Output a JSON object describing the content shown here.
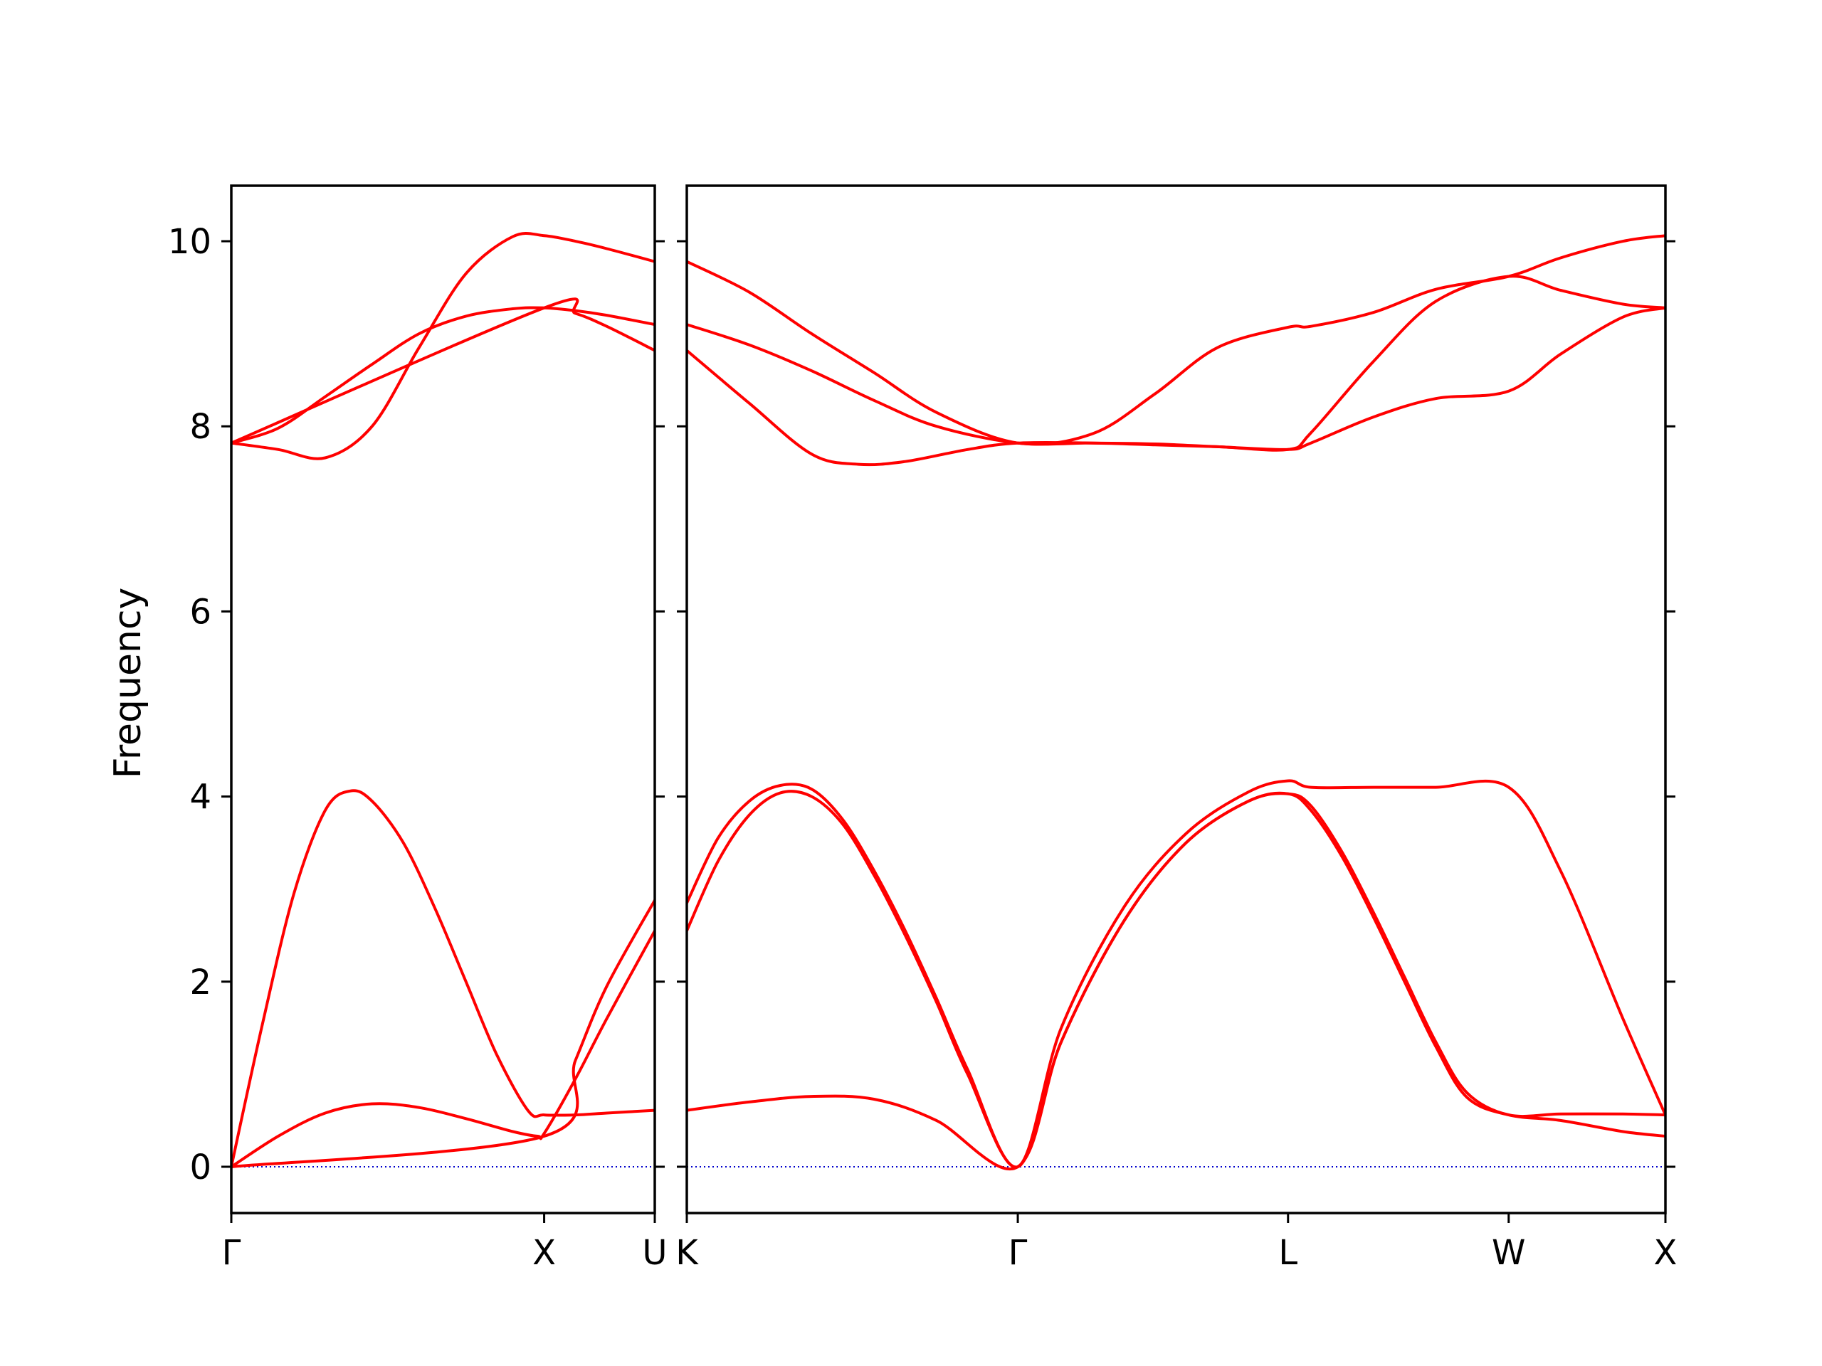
{
  "chart_data": {
    "type": "line",
    "title": "",
    "ylabel": "Frequency",
    "ylim": [
      -0.5,
      10.6
    ],
    "yticks": [
      0,
      2,
      4,
      6,
      8,
      10
    ],
    "grid": false,
    "colors": {
      "bands": "#ff0000",
      "zero_line": "#0000cc",
      "axes": "#000000"
    },
    "panels": [
      {
        "name": "Γ-X-U",
        "xlim": [
          0,
          1.3536
        ],
        "ticks": [
          {
            "x": 0,
            "label": "Γ"
          },
          {
            "x": 1.0,
            "label": "X"
          },
          {
            "x": 1.3536,
            "label": "U"
          }
        ],
        "series": [
          {
            "x": [
              0,
              0.15,
              0.3,
              0.45,
              0.6,
              0.75,
              0.9,
              1.0,
              1.1,
              1.2,
              1.3536
            ],
            "y": [
              7.82,
              7.75,
              7.66,
              8.0,
              8.85,
              9.65,
              10.05,
              10.06,
              10.0,
              9.92,
              9.78
            ]
          },
          {
            "x": [
              0,
              0.15,
              0.3,
              0.45,
              0.6,
              0.75,
              0.9,
              1.0,
              1.1,
              1.2,
              1.3536
            ],
            "y": [
              7.82,
              7.98,
              8.32,
              8.67,
              9.0,
              9.19,
              9.27,
              9.28,
              9.25,
              9.2,
              9.1
            ]
          },
          {
            "x": [
              0,
              1.0,
              1.1,
              1.2,
              1.3536
            ],
            "y": [
              7.82,
              9.28,
              9.22,
              9.08,
              8.82
            ]
          },
          {
            "x": [
              0,
              0.1,
              0.2,
              0.3,
              0.38,
              0.45,
              0.55,
              0.65,
              0.75,
              0.85,
              0.95,
              1.0,
              1.1,
              1.2,
              1.3536
            ],
            "y": [
              0,
              1.55,
              2.95,
              3.85,
              4.06,
              3.95,
              3.5,
              2.8,
              2.0,
              1.2,
              0.6,
              0.56,
              0.56,
              0.58,
              0.61
            ]
          },
          {
            "x": [
              0,
              0.15,
              0.3,
              0.45,
              0.6,
              0.75,
              0.9,
              0.98,
              1.0,
              1.1,
              1.2,
              1.3536
            ],
            "y": [
              0,
              0.33,
              0.58,
              0.68,
              0.64,
              0.52,
              0.38,
              0.33,
              0.36,
              0.95,
              1.6,
              2.55
            ]
          },
          {
            "x": [
              0,
              1.0,
              1.1,
              1.2,
              1.3536
            ],
            "y": [
              0,
              0.33,
              1.15,
              1.95,
              2.88
            ]
          }
        ]
      },
      {
        "name": "K-Γ-L-W-X",
        "xlim": [
          0,
          3.1361
        ],
        "ticks": [
          {
            "x": 0,
            "label": "K"
          },
          {
            "x": 1.0607,
            "label": "Γ"
          },
          {
            "x": 1.9267,
            "label": "L"
          },
          {
            "x": 2.6338,
            "label": "W"
          },
          {
            "x": 3.1361,
            "label": "X"
          }
        ],
        "series": [
          {
            "x": [
              0,
              0.2,
              0.4,
              0.6,
              0.8,
              1.0607,
              1.3,
              1.5,
              1.7,
              1.9267,
              2.0,
              2.2,
              2.4,
              2.6338,
              2.8,
              3.0,
              3.1361
            ],
            "y": [
              9.78,
              9.45,
              9.0,
              8.58,
              8.15,
              7.82,
              7.92,
              8.35,
              8.85,
              9.07,
              9.08,
              9.23,
              9.48,
              9.62,
              9.82,
              10.0,
              10.06
            ]
          },
          {
            "x": [
              0,
              0.2,
              0.4,
              0.6,
              0.8,
              1.0607,
              1.3,
              1.5,
              1.7,
              1.9267,
              2.0,
              2.2,
              2.4,
              2.6338,
              2.8,
              3.0,
              3.1361
            ],
            "y": [
              9.1,
              8.88,
              8.6,
              8.28,
              8.0,
              7.82,
              7.82,
              7.81,
              7.78,
              7.75,
              7.82,
              8.1,
              8.3,
              8.38,
              8.78,
              9.18,
              9.28
            ]
          },
          {
            "x": [
              0,
              0.2,
              0.4,
              0.55,
              0.7,
              0.9,
              1.0607,
              1.3,
              1.5,
              1.7,
              1.9267,
              2.0,
              2.2,
              2.4,
              2.6338,
              2.8,
              3.0,
              3.1361
            ],
            "y": [
              8.82,
              8.25,
              7.7,
              7.59,
              7.62,
              7.75,
              7.82,
              7.82,
              7.8,
              7.78,
              7.75,
              7.93,
              8.7,
              9.35,
              9.62,
              9.47,
              9.32,
              9.28
            ]
          },
          {
            "x": [
              0,
              0.1,
              0.2,
              0.3,
              0.4,
              0.5,
              0.6,
              0.7,
              0.8,
              0.9,
              1.0607,
              1.2,
              1.4,
              1.6,
              1.8,
              1.9267,
              2.0,
              2.2,
              2.4,
              2.6338,
              2.8,
              3.0,
              3.1361
            ],
            "y": [
              2.85,
              3.55,
              3.95,
              4.12,
              4.08,
              3.75,
              3.2,
              2.55,
              1.82,
              1.05,
              0,
              1.5,
              2.8,
              3.6,
              4.05,
              4.17,
              4.1,
              4.1,
              4.1,
              4.1,
              3.2,
              1.6,
              0.56
            ]
          },
          {
            "x": [
              0,
              0.1,
              0.2,
              0.3,
              0.4,
              0.5,
              0.6,
              0.7,
              0.8,
              0.9,
              1.0607,
              1.2,
              1.4,
              1.6,
              1.8,
              1.9267,
              2.0,
              2.1,
              2.2,
              2.3,
              2.4,
              2.5,
              2.6338,
              2.8,
              3.0,
              3.1361
            ],
            "y": [
              2.55,
              3.3,
              3.8,
              4.04,
              4.0,
              3.7,
              3.15,
              2.5,
              1.78,
              1.0,
              0,
              1.35,
              2.65,
              3.5,
              3.95,
              4.03,
              3.85,
              3.35,
              2.7,
              2.0,
              1.3,
              0.75,
              0.56,
              0.5,
              0.38,
              0.33
            ]
          },
          {
            "x": [
              0,
              0.2,
              0.4,
              0.6,
              0.8,
              1.0607,
              1.2,
              1.4,
              1.6,
              1.8,
              1.9267,
              2.0,
              2.1,
              2.2,
              2.3,
              2.4,
              2.5,
              2.6338,
              2.8,
              3.0,
              3.1361
            ],
            "y": [
              0.61,
              0.7,
              0.76,
              0.73,
              0.5,
              0,
              1.35,
              2.65,
              3.5,
              3.95,
              4.03,
              3.9,
              3.4,
              2.75,
              2.05,
              1.35,
              0.8,
              0.56,
              0.57,
              0.57,
              0.56
            ]
          }
        ]
      }
    ]
  }
}
